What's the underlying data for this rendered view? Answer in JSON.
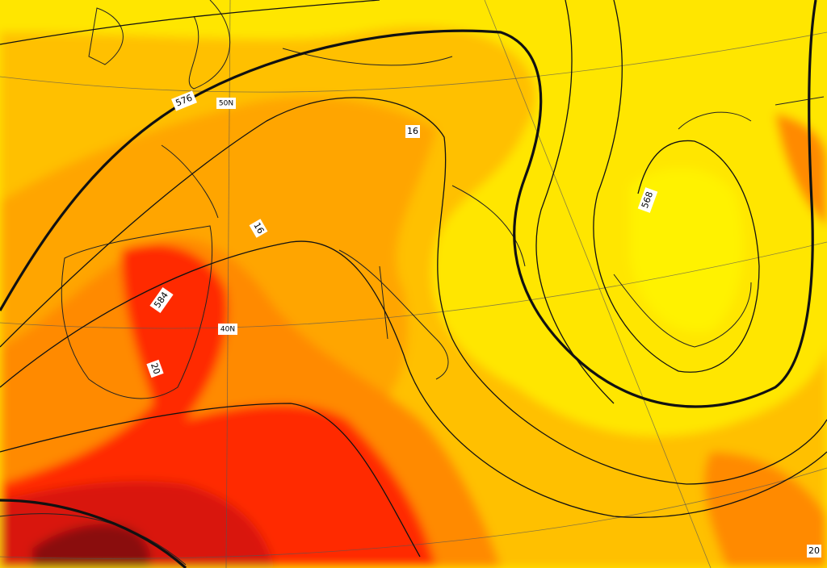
{
  "map": {
    "labels": [
      "576",
      "50N",
      "16",
      "16",
      "584",
      "40N",
      "20",
      "568",
      "20"
    ]
  }
}
